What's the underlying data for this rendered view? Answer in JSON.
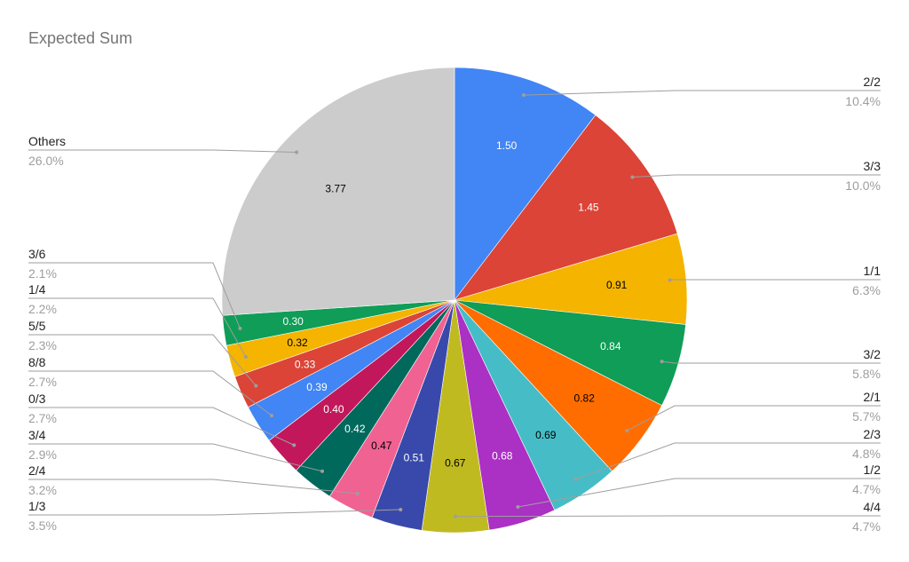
{
  "chart_data": {
    "type": "pie",
    "title": "Expected Sum",
    "slices": [
      {
        "label": "2/2",
        "value": 1.5,
        "display": "1.50",
        "percent": "10.4%",
        "color": "#4285f4",
        "text_color": "#ffffff"
      },
      {
        "label": "3/3",
        "value": 1.45,
        "display": "1.45",
        "percent": "10.0%",
        "color": "#db4437",
        "text_color": "#ffffff"
      },
      {
        "label": "1/1",
        "value": 0.91,
        "display": "0.91",
        "percent": "6.3%",
        "color": "#f4b400",
        "text_color": "#000000"
      },
      {
        "label": "3/2",
        "value": 0.84,
        "display": "0.84",
        "percent": "5.8%",
        "color": "#0f9d58",
        "text_color": "#ffffff"
      },
      {
        "label": "2/1",
        "value": 0.82,
        "display": "0.82",
        "percent": "5.7%",
        "color": "#ff6d00",
        "text_color": "#000000"
      },
      {
        "label": "2/3",
        "value": 0.69,
        "display": "0.69",
        "percent": "4.8%",
        "color": "#46bdc6",
        "text_color": "#000000"
      },
      {
        "label": "1/2",
        "value": 0.68,
        "display": "0.68",
        "percent": "4.7%",
        "color": "#ab30c4",
        "text_color": "#ffffff"
      },
      {
        "label": "4/4",
        "value": 0.67,
        "display": "0.67",
        "percent": "4.7%",
        "color": "#c0ba21",
        "text_color": "#000000"
      },
      {
        "label": "1/3",
        "value": 0.51,
        "display": "0.51",
        "percent": "3.5%",
        "color": "#3949ab",
        "text_color": "#ffffff"
      },
      {
        "label": "2/4",
        "value": 0.47,
        "display": "0.47",
        "percent": "3.2%",
        "color": "#f06292",
        "text_color": "#000000"
      },
      {
        "label": "3/4",
        "value": 0.42,
        "display": "0.42",
        "percent": "2.9%",
        "color": "#00695c",
        "text_color": "#ffffff"
      },
      {
        "label": "0/3",
        "value": 0.4,
        "display": "0.40",
        "percent": "2.7%",
        "color": "#c2185b",
        "text_color": "#ffffff"
      },
      {
        "label": "8/8",
        "value": 0.39,
        "display": "0.39",
        "percent": "2.7%",
        "color": "#4285f4",
        "text_color": "#ffffff"
      },
      {
        "label": "5/5",
        "value": 0.33,
        "display": "0.33",
        "percent": "2.3%",
        "color": "#db4437",
        "text_color": "#ffffff"
      },
      {
        "label": "1/4",
        "value": 0.32,
        "display": "0.32",
        "percent": "2.2%",
        "color": "#f4b400",
        "text_color": "#000000"
      },
      {
        "label": "3/6",
        "value": 0.3,
        "display": "0.30",
        "percent": "2.1%",
        "color": "#0f9d58",
        "text_color": "#ffffff"
      },
      {
        "label": "Others",
        "value": 3.77,
        "display": "3.77",
        "percent": "26.0%",
        "color": "#cccccc",
        "text_color": "#000000"
      }
    ]
  }
}
